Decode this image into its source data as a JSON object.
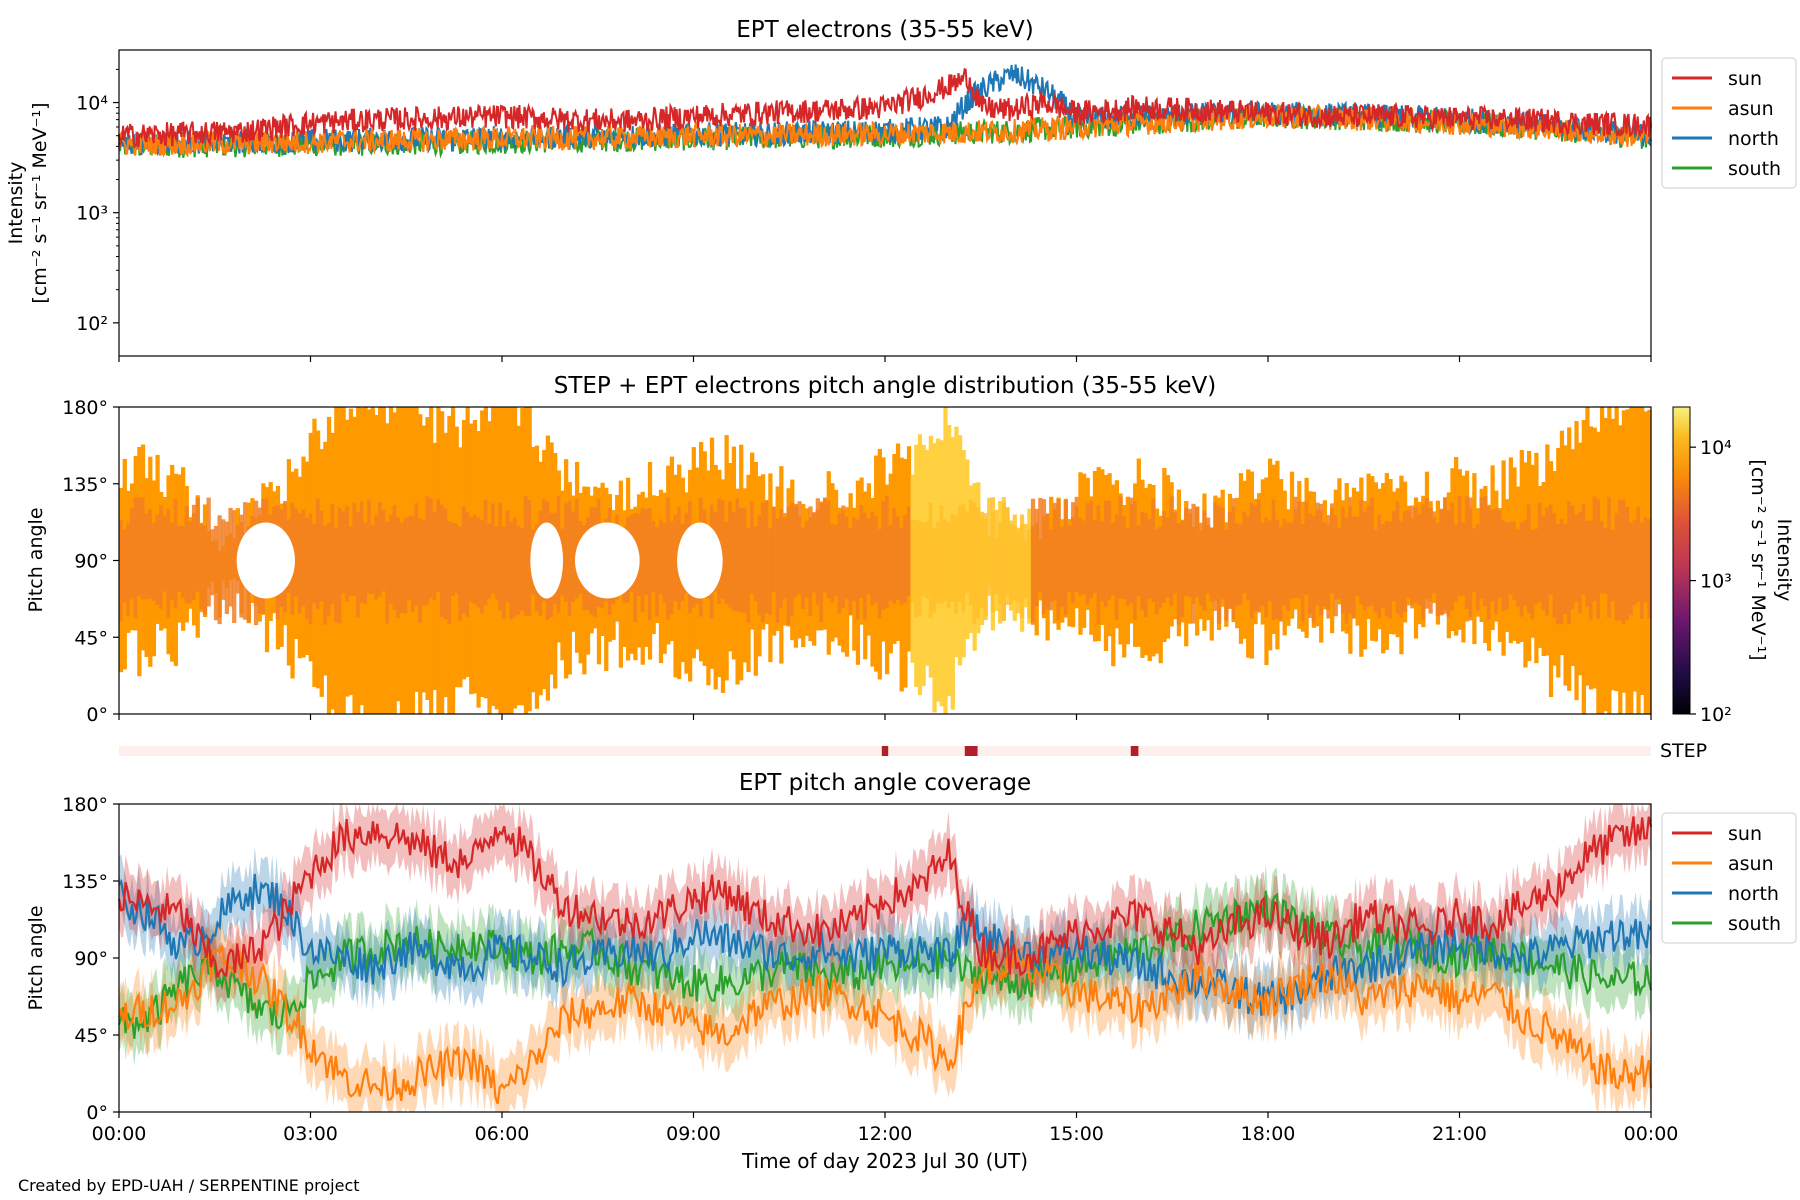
{
  "figure": {
    "footer": "Created by EPD-UAH / SERPENTINE project"
  },
  "colors": {
    "sun": "#d62728",
    "asun": "#ff7f0e",
    "north": "#1f77b4",
    "south": "#2ca02c",
    "pad_main": "#ff9900",
    "pad_center": "#f27f22",
    "pad_high": "#ffd040",
    "step_bg": "#fdefeb",
    "step_mark": "#b11f2a"
  },
  "chart_data": [
    {
      "type": "line",
      "title": "EPT electrons (35-55 keV)",
      "ylabel": "Intensity",
      "yunit": "[cm⁻² s⁻¹ sr⁻¹ MeV⁻¹]",
      "yscale": "log",
      "ylim": [
        50,
        30000
      ],
      "yticks": [
        {
          "value": 100,
          "label": "10²"
        },
        {
          "value": 1000,
          "label": "10³"
        },
        {
          "value": 10000,
          "label": "10⁴"
        }
      ],
      "x_unit": "hours",
      "xlim": [
        0,
        24
      ],
      "legend": "right",
      "series": [
        {
          "name": "sun",
          "x": [
            0,
            1,
            2,
            3,
            4,
            5,
            6,
            7,
            8,
            9,
            10,
            11,
            12,
            12.5,
            13,
            13.3,
            13.5,
            14,
            14.5,
            15,
            16,
            17,
            18,
            19,
            20,
            21,
            22,
            23,
            24
          ],
          "y": [
            5000,
            5200,
            5500,
            6500,
            7000,
            7200,
            7500,
            7000,
            6800,
            7500,
            8000,
            8500,
            9000,
            11000,
            14000,
            17000,
            9000,
            8500,
            10000,
            8000,
            9000,
            8500,
            8000,
            7500,
            7500,
            7200,
            7000,
            6500,
            6200
          ]
        },
        {
          "name": "asun",
          "x": [
            0,
            2,
            4,
            6,
            8,
            9,
            10,
            12,
            14,
            16,
            18,
            20,
            22,
            24
          ],
          "y": [
            4200,
            4300,
            4500,
            4700,
            4800,
            5000,
            5000,
            5200,
            5500,
            6500,
            7500,
            7000,
            6000,
            4800
          ]
        },
        {
          "name": "north",
          "x": [
            0,
            2,
            4,
            6,
            8,
            10,
            12,
            13,
            13.5,
            14,
            14.5,
            15,
            16,
            18,
            20,
            22,
            24
          ],
          "y": [
            4300,
            4400,
            4600,
            4800,
            5000,
            5200,
            5500,
            6000,
            13000,
            18000,
            13000,
            7000,
            7500,
            8000,
            7500,
            6500,
            5000
          ]
        },
        {
          "name": "south",
          "x": [
            0,
            2,
            4,
            6,
            8,
            10,
            12,
            14,
            16,
            18,
            20,
            22,
            24
          ],
          "y": [
            4000,
            4100,
            4200,
            4400,
            4600,
            4800,
            5000,
            5500,
            6500,
            7500,
            7000,
            6000,
            4800
          ]
        }
      ]
    },
    {
      "type": "heatmap",
      "title": "STEP + EPT electrons pitch angle distribution (35-55 keV)",
      "ylabel": "Pitch angle",
      "ylim": [
        0,
        180
      ],
      "yticks": [
        "0°",
        "45°",
        "90°",
        "135°",
        "180°"
      ],
      "xlim": [
        0,
        24
      ],
      "colorbar": {
        "label": "Intensity",
        "unit": "[cm⁻² s⁻¹ sr⁻¹ MeV⁻¹]",
        "scale": "log",
        "range": [
          100,
          20000
        ],
        "ticks": [
          {
            "value": 100,
            "label": "10²"
          },
          {
            "value": 1000,
            "label": "10³"
          },
          {
            "value": 10000,
            "label": "10⁴"
          }
        ]
      }
    },
    {
      "type": "bar",
      "label": "STEP",
      "xlim": [
        0,
        24
      ],
      "marks_hours": [
        [
          11.95,
          12.05
        ],
        [
          13.25,
          13.45
        ],
        [
          15.85,
          15.97
        ]
      ]
    },
    {
      "type": "area",
      "title": "EPT pitch angle coverage",
      "ylabel": "Pitch angle",
      "ylim": [
        0,
        180
      ],
      "yticks": [
        "0°",
        "45°",
        "90°",
        "135°",
        "180°"
      ],
      "xlabel": "Time of day 2023 Jul 30 (UT)",
      "xlim": [
        0,
        24
      ],
      "xticks": [
        "00:00",
        "03:00",
        "06:00",
        "09:00",
        "12:00",
        "15:00",
        "18:00",
        "21:00",
        "00:00"
      ],
      "legend": "right",
      "series": [
        {
          "name": "sun",
          "x": [
            0,
            0.5,
            1,
            1.5,
            2,
            2.5,
            3,
            3.5,
            4,
            4.5,
            5,
            5.5,
            6,
            6.5,
            7,
            7.5,
            8,
            8.5,
            9,
            9.5,
            10,
            10.5,
            11,
            11.5,
            12,
            12.5,
            13,
            13.3,
            13.5,
            14,
            14.5,
            15,
            15.5,
            16,
            16.5,
            17,
            17.5,
            18,
            18.5,
            19,
            19.5,
            20,
            20.5,
            21,
            21.5,
            22,
            22.5,
            23,
            23.5,
            24
          ],
          "y": [
            125,
            120,
            115,
            85,
            90,
            110,
            140,
            160,
            165,
            160,
            150,
            145,
            170,
            145,
            120,
            115,
            110,
            115,
            125,
            130,
            115,
            110,
            105,
            110,
            125,
            130,
            150,
            115,
            95,
            90,
            95,
            105,
            110,
            115,
            105,
            95,
            110,
            115,
            105,
            100,
            115,
            110,
            105,
            115,
            110,
            120,
            130,
            150,
            160,
            165
          ]
        },
        {
          "name": "asun",
          "x": [
            0,
            0.5,
            1,
            1.5,
            2,
            2.5,
            3,
            3.5,
            4,
            4.5,
            5,
            5.5,
            6,
            6.5,
            7,
            7.5,
            8,
            8.5,
            9,
            9.5,
            10,
            10.5,
            11,
            11.5,
            12,
            12.5,
            13,
            13.3,
            13.5,
            14,
            14.5,
            15,
            15.5,
            16,
            16.5,
            17,
            17.5,
            18,
            18.5,
            19,
            19.5,
            20,
            20.5,
            21,
            21.5,
            22,
            22.5,
            23,
            23.5,
            24
          ],
          "y": [
            55,
            60,
            65,
            90,
            85,
            65,
            40,
            20,
            15,
            18,
            25,
            30,
            10,
            30,
            55,
            60,
            65,
            60,
            50,
            45,
            60,
            65,
            70,
            65,
            55,
            45,
            30,
            60,
            85,
            85,
            80,
            70,
            65,
            60,
            70,
            80,
            70,
            65,
            75,
            80,
            65,
            70,
            75,
            65,
            70,
            55,
            45,
            30,
            20,
            25
          ]
        },
        {
          "name": "north",
          "x": [
            0,
            0.5,
            1,
            1.5,
            2,
            2.5,
            3,
            3.5,
            4,
            4.5,
            5,
            5.5,
            6,
            6.5,
            7,
            7.5,
            8,
            8.5,
            9,
            9.5,
            10,
            10.5,
            11,
            11.5,
            12,
            12.5,
            13,
            13.3,
            13.5,
            14,
            14.5,
            15,
            15.5,
            16,
            16.5,
            17,
            17.5,
            18,
            18.5,
            19,
            19.5,
            20,
            20.5,
            21,
            21.5,
            22,
            22.5,
            23,
            23.5,
            24
          ],
          "y": [
            125,
            115,
            95,
            110,
            130,
            125,
            95,
            90,
            85,
            95,
            90,
            85,
            95,
            90,
            85,
            90,
            95,
            90,
            105,
            100,
            95,
            90,
            95,
            90,
            95,
            95,
            90,
            110,
            105,
            95,
            90,
            95,
            90,
            85,
            80,
            75,
            70,
            65,
            70,
            80,
            85,
            90,
            95,
            100,
            95,
            90,
            95,
            100,
            105,
            100
          ]
        },
        {
          "name": "south",
          "x": [
            0,
            0.5,
            1,
            1.5,
            2,
            2.5,
            3,
            3.5,
            4,
            4.5,
            5,
            5.5,
            6,
            6.5,
            7,
            7.5,
            8,
            8.5,
            9,
            9.5,
            10,
            10.5,
            11,
            11.5,
            12,
            12.5,
            13,
            13.3,
            13.5,
            14,
            14.5,
            15,
            15.5,
            16,
            16.5,
            17,
            17.5,
            18,
            18.5,
            19,
            19.5,
            20,
            20.5,
            21,
            21.5,
            22,
            22.5,
            23,
            23.5,
            24
          ],
          "y": [
            50,
            55,
            75,
            85,
            65,
            55,
            75,
            90,
            95,
            100,
            95,
            100,
            95,
            90,
            95,
            95,
            85,
            80,
            75,
            75,
            80,
            85,
            80,
            80,
            85,
            85,
            90,
            80,
            80,
            75,
            80,
            85,
            90,
            95,
            100,
            110,
            115,
            120,
            110,
            100,
            95,
            100,
            95,
            90,
            95,
            90,
            85,
            80,
            75,
            80
          ]
        }
      ]
    }
  ]
}
